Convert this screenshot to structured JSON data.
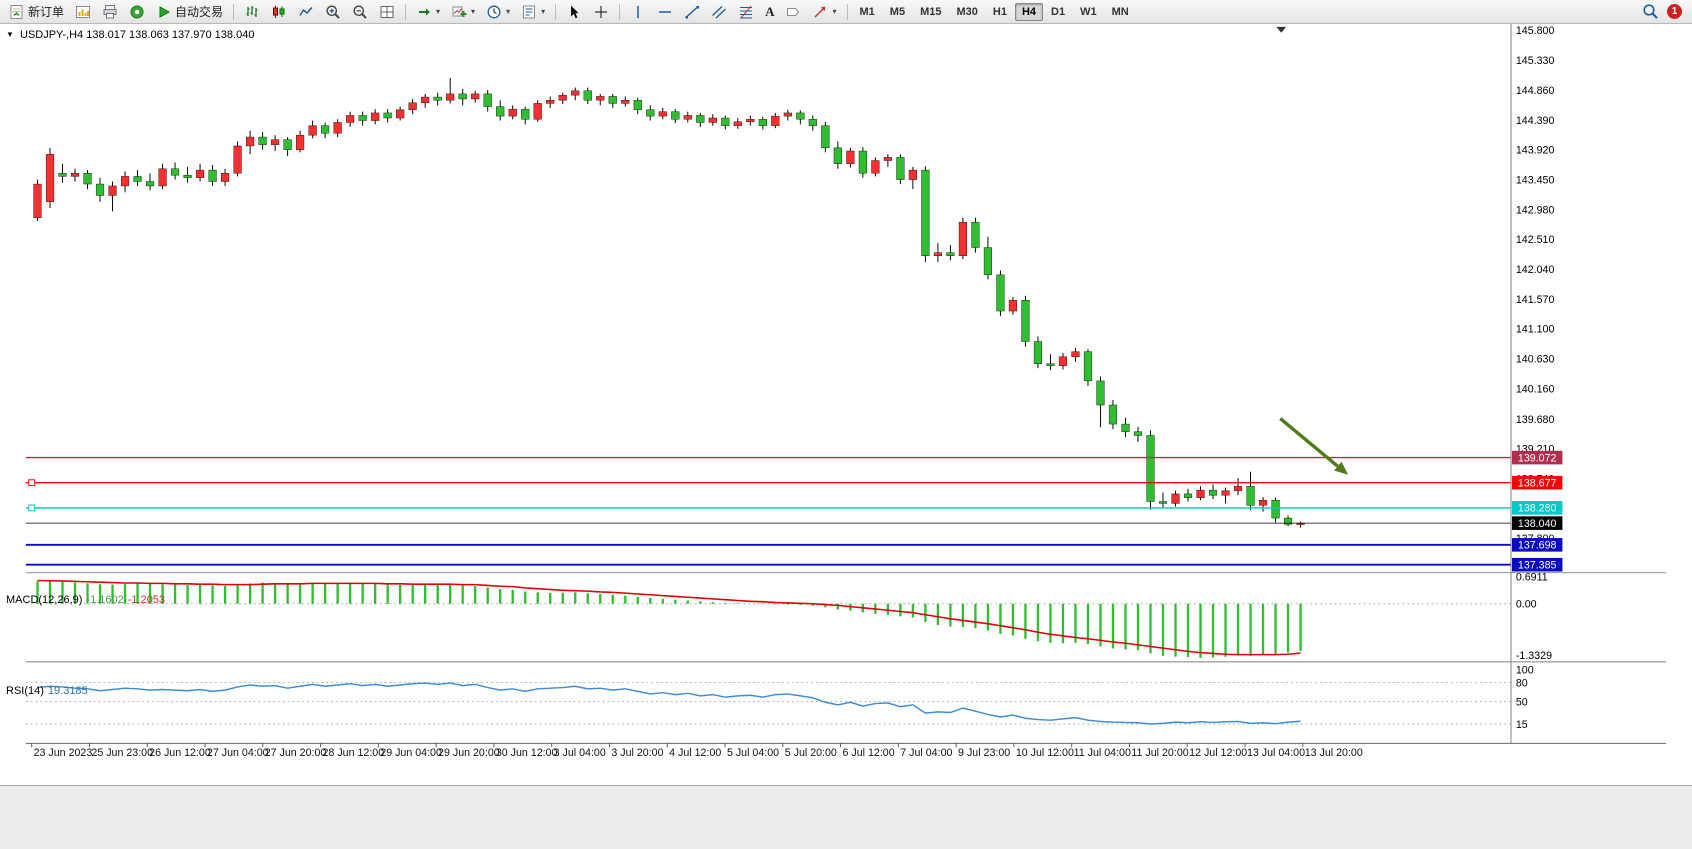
{
  "toolbar": {
    "new_order_label": "新订单",
    "auto_trading_label": "自动交易",
    "caret": "▾",
    "text_tool_glyph": "A",
    "timeframes": [
      "M1",
      "M5",
      "M15",
      "M30",
      "H1",
      "H4",
      "D1",
      "W1",
      "MN"
    ],
    "active_timeframe": "H4",
    "notification_badge": "1"
  },
  "chart": {
    "title": "USDJPY-,H4 138.017 138.063 137.970 138.040",
    "one_click_glyph": "▼",
    "current_price_label": "138.040"
  },
  "macd": {
    "name": "MACD(12,26,9)",
    "main_value": "-1.1602",
    "signal_value": "-1.2053",
    "scale": [
      "0.6911",
      "0.00",
      "-1.3329"
    ]
  },
  "rsi": {
    "name": "RSI(14)",
    "value": "19.3185",
    "scale": [
      "100",
      "80",
      "50",
      "15"
    ],
    "levels": [
      80,
      50,
      15
    ]
  },
  "price_lines": [
    {
      "price": 139.072,
      "label": "139.072",
      "color": "#b02e4e",
      "width": 1.4,
      "handle": false
    },
    {
      "price": 138.677,
      "label": "138.677",
      "color": "#f40606",
      "width": 1.4,
      "handle": true
    },
    {
      "price": 138.28,
      "label": "138.280",
      "color": "#00c8c8",
      "width": 1.4,
      "handle": true
    },
    {
      "price": 138.04,
      "label": "138.040",
      "color": "#000000",
      "width": 0.9,
      "handle": false
    },
    {
      "price": 137.698,
      "label": "137.698",
      "color": "#0a0ac0",
      "width": 2,
      "handle": false
    },
    {
      "price": 137.385,
      "label": "137.385",
      "color": "#0a0ac0",
      "width": 2,
      "handle": false
    }
  ],
  "axis": {
    "price_ticks": [
      "145.800",
      "145.330",
      "144.860",
      "144.390",
      "143.920",
      "143.450",
      "142.980",
      "142.510",
      "142.040",
      "141.570",
      "141.100",
      "140.630",
      "140.160",
      "139.680",
      "139.210",
      "138.740",
      "138.270",
      "137.800"
    ],
    "dates": [
      "23 Jun 2023",
      "25 Jun 23:00",
      "26 Jun 12:00",
      "27 Jun 04:00",
      "27 Jun 20:00",
      "28 Jun 12:00",
      "29 Jun 04:00",
      "29 Jun 20:00",
      "30 Jun 12:00",
      "3 Jul 04:00",
      "3 Jul 20:00",
      "4 Jul 12:00",
      "5 Jul 04:00",
      "5 Jul 20:00",
      "6 Jul 12:00",
      "7 Jul 04:00",
      "9 Jul 23:00",
      "10 Jul 12:00",
      "11 Jul 04:00",
      "11 Jul 20:00",
      "12 Jul 12:00",
      "13 Jul 04:00",
      "13 Jul 20:00"
    ]
  },
  "annotation": {
    "arrow_color": "#4e7d1a"
  },
  "colors": {
    "bull": "#f83030",
    "bear": "#2fbe2f",
    "wick": "#000000",
    "macd_hist": "#2fbe2f",
    "macd_signal": "#e00000",
    "rsi_line": "#3f8cd6",
    "bg": "#ffffff"
  },
  "chart_data": {
    "type": "candlestick",
    "symbol": "USDJPY-",
    "timeframe": "H4",
    "ohlc_current": {
      "open": 138.017,
      "high": 138.063,
      "low": 137.97,
      "close": 138.04
    },
    "y_range": [
      137.33,
      145.87
    ],
    "macd_range": [
      -1.3329,
      0.6911
    ],
    "rsi_range": [
      0,
      100
    ],
    "candles": [
      [
        142.85,
        143.45,
        142.8,
        143.38
      ],
      [
        143.1,
        143.95,
        143.0,
        143.85
      ],
      [
        143.55,
        143.7,
        143.4,
        143.5
      ],
      [
        143.5,
        143.62,
        143.42,
        143.55
      ],
      [
        143.55,
        143.6,
        143.3,
        143.38
      ],
      [
        143.38,
        143.48,
        143.1,
        143.2
      ],
      [
        143.2,
        143.42,
        142.95,
        143.35
      ],
      [
        143.35,
        143.58,
        143.25,
        143.5
      ],
      [
        143.5,
        143.6,
        143.35,
        143.42
      ],
      [
        143.42,
        143.55,
        143.28,
        143.35
      ],
      [
        143.35,
        143.7,
        143.3,
        143.62
      ],
      [
        143.62,
        143.72,
        143.45,
        143.52
      ],
      [
        143.52,
        143.65,
        143.4,
        143.48
      ],
      [
        143.48,
        143.7,
        143.42,
        143.6
      ],
      [
        143.6,
        143.68,
        143.35,
        143.42
      ],
      [
        143.42,
        143.62,
        143.35,
        143.55
      ],
      [
        143.55,
        144.05,
        143.5,
        143.98
      ],
      [
        143.98,
        144.22,
        143.85,
        144.12
      ],
      [
        144.12,
        144.2,
        143.92,
        144.0
      ],
      [
        144.0,
        144.15,
        143.9,
        144.08
      ],
      [
        144.08,
        144.12,
        143.82,
        143.92
      ],
      [
        143.92,
        144.22,
        143.88,
        144.15
      ],
      [
        144.15,
        144.38,
        144.1,
        144.3
      ],
      [
        144.3,
        144.35,
        144.1,
        144.18
      ],
      [
        144.18,
        144.4,
        144.12,
        144.35
      ],
      [
        144.35,
        144.52,
        144.28,
        144.46
      ],
      [
        144.46,
        144.52,
        144.3,
        144.38
      ],
      [
        144.38,
        144.56,
        144.32,
        144.5
      ],
      [
        144.5,
        144.56,
        144.35,
        144.42
      ],
      [
        144.42,
        144.6,
        144.38,
        144.55
      ],
      [
        144.55,
        144.72,
        144.48,
        144.66
      ],
      [
        144.66,
        144.8,
        144.58,
        144.75
      ],
      [
        144.75,
        144.82,
        144.62,
        144.7
      ],
      [
        144.7,
        145.05,
        144.65,
        144.8
      ],
      [
        144.8,
        144.88,
        144.62,
        144.72
      ],
      [
        144.72,
        144.85,
        144.66,
        144.8
      ],
      [
        144.8,
        144.86,
        144.52,
        144.6
      ],
      [
        144.6,
        144.7,
        144.38,
        144.45
      ],
      [
        144.45,
        144.62,
        144.4,
        144.56
      ],
      [
        144.56,
        144.6,
        144.32,
        144.4
      ],
      [
        144.4,
        144.7,
        144.36,
        144.65
      ],
      [
        144.65,
        144.76,
        144.58,
        144.7
      ],
      [
        144.7,
        144.82,
        144.64,
        144.78
      ],
      [
        144.78,
        144.9,
        144.7,
        144.85
      ],
      [
        144.85,
        144.9,
        144.64,
        144.7
      ],
      [
        144.7,
        144.8,
        144.62,
        144.76
      ],
      [
        144.76,
        144.8,
        144.58,
        144.65
      ],
      [
        144.65,
        144.76,
        144.6,
        144.7
      ],
      [
        144.7,
        144.74,
        144.48,
        144.55
      ],
      [
        144.55,
        144.62,
        144.38,
        144.45
      ],
      [
        144.45,
        144.58,
        144.4,
        144.52
      ],
      [
        144.52,
        144.56,
        144.34,
        144.4
      ],
      [
        144.4,
        144.52,
        144.35,
        144.46
      ],
      [
        144.46,
        144.5,
        144.28,
        144.35
      ],
      [
        144.35,
        144.48,
        144.3,
        144.42
      ],
      [
        144.42,
        144.46,
        144.24,
        144.3
      ],
      [
        144.3,
        144.42,
        144.25,
        144.36
      ],
      [
        144.36,
        144.46,
        144.3,
        144.4
      ],
      [
        144.4,
        144.44,
        144.24,
        144.3
      ],
      [
        144.3,
        144.5,
        144.26,
        144.45
      ],
      [
        144.45,
        144.55,
        144.38,
        144.5
      ],
      [
        144.5,
        144.54,
        144.32,
        144.4
      ],
      [
        144.4,
        144.46,
        144.22,
        144.3
      ],
      [
        144.3,
        144.36,
        143.88,
        143.95
      ],
      [
        143.95,
        144.05,
        143.62,
        143.7
      ],
      [
        143.7,
        143.95,
        143.64,
        143.9
      ],
      [
        143.9,
        143.96,
        143.48,
        143.55
      ],
      [
        143.55,
        143.8,
        143.5,
        143.75
      ],
      [
        143.75,
        143.85,
        143.65,
        143.8
      ],
      [
        143.8,
        143.85,
        143.38,
        143.45
      ],
      [
        143.45,
        143.65,
        143.3,
        143.6
      ],
      [
        143.6,
        143.66,
        142.15,
        142.25
      ],
      [
        142.25,
        142.45,
        142.15,
        142.3
      ],
      [
        142.3,
        142.42,
        142.18,
        142.25
      ],
      [
        142.25,
        142.85,
        142.2,
        142.78
      ],
      [
        142.78,
        142.85,
        142.3,
        142.38
      ],
      [
        142.38,
        142.55,
        141.88,
        141.95
      ],
      [
        141.95,
        142.02,
        141.3,
        141.38
      ],
      [
        141.38,
        141.6,
        141.32,
        141.55
      ],
      [
        141.55,
        141.62,
        140.82,
        140.9
      ],
      [
        140.9,
        140.98,
        140.48,
        140.55
      ],
      [
        140.55,
        140.7,
        140.45,
        140.52
      ],
      [
        140.52,
        140.72,
        140.46,
        140.66
      ],
      [
        140.66,
        140.8,
        140.58,
        140.74
      ],
      [
        140.74,
        140.78,
        140.2,
        140.28
      ],
      [
        140.28,
        140.35,
        139.55,
        139.9
      ],
      [
        139.9,
        139.98,
        139.52,
        139.6
      ],
      [
        139.6,
        139.7,
        139.4,
        139.48
      ],
      [
        139.48,
        139.56,
        139.32,
        139.42
      ],
      [
        139.42,
        139.5,
        138.25,
        138.38
      ],
      [
        138.38,
        138.52,
        138.28,
        138.35
      ],
      [
        138.35,
        138.55,
        138.3,
        138.5
      ],
      [
        138.5,
        138.58,
        138.38,
        138.44
      ],
      [
        138.44,
        138.62,
        138.4,
        138.56
      ],
      [
        138.56,
        138.65,
        138.42,
        138.48
      ],
      [
        138.48,
        138.6,
        138.35,
        138.55
      ],
      [
        138.55,
        138.75,
        138.48,
        138.62
      ],
      [
        138.62,
        138.85,
        138.25,
        138.32
      ],
      [
        138.32,
        138.45,
        138.22,
        138.4
      ],
      [
        138.4,
        138.44,
        138.05,
        138.12
      ],
      [
        138.12,
        138.16,
        137.99,
        138.02
      ],
      [
        138.017,
        138.063,
        137.97,
        138.04
      ]
    ],
    "macd_hist": [
      0.55,
      0.56,
      0.54,
      0.52,
      0.5,
      0.48,
      0.47,
      0.48,
      0.5,
      0.49,
      0.48,
      0.47,
      0.46,
      0.47,
      0.45,
      0.44,
      0.46,
      0.5,
      0.52,
      0.51,
      0.49,
      0.5,
      0.52,
      0.5,
      0.51,
      0.52,
      0.5,
      0.49,
      0.47,
      0.46,
      0.47,
      0.48,
      0.48,
      0.47,
      0.45,
      0.43,
      0.4,
      0.36,
      0.34,
      0.3,
      0.28,
      0.27,
      0.27,
      0.28,
      0.26,
      0.24,
      0.22,
      0.2,
      0.17,
      0.14,
      0.12,
      0.1,
      0.08,
      0.06,
      0.04,
      0.02,
      0.01,
      0.0,
      -0.01,
      -0.02,
      -0.02,
      -0.03,
      -0.05,
      -0.09,
      -0.14,
      -0.17,
      -0.21,
      -0.25,
      -0.27,
      -0.31,
      -0.34,
      -0.45,
      -0.52,
      -0.56,
      -0.57,
      -0.6,
      -0.66,
      -0.74,
      -0.78,
      -0.86,
      -0.92,
      -0.96,
      -0.97,
      -0.96,
      -0.99,
      -1.05,
      -1.1,
      -1.12,
      -1.14,
      -1.22,
      -1.28,
      -1.3,
      -1.31,
      -1.33,
      -1.32,
      -1.3,
      -1.27,
      -1.28,
      -1.26,
      -1.24,
      -1.2,
      -1.16
    ],
    "macd_signal": [
      0.57,
      0.565,
      0.56,
      0.55,
      0.54,
      0.53,
      0.52,
      0.51,
      0.51,
      0.5,
      0.5,
      0.49,
      0.49,
      0.48,
      0.48,
      0.47,
      0.47,
      0.47,
      0.48,
      0.49,
      0.49,
      0.49,
      0.5,
      0.5,
      0.5,
      0.5,
      0.5,
      0.5,
      0.49,
      0.49,
      0.48,
      0.48,
      0.48,
      0.48,
      0.47,
      0.47,
      0.45,
      0.43,
      0.42,
      0.39,
      0.37,
      0.35,
      0.33,
      0.32,
      0.31,
      0.29,
      0.28,
      0.26,
      0.24,
      0.22,
      0.2,
      0.18,
      0.16,
      0.14,
      0.12,
      0.1,
      0.08,
      0.06,
      0.05,
      0.03,
      0.02,
      0.01,
      0.0,
      -0.02,
      -0.04,
      -0.07,
      -0.1,
      -0.13,
      -0.16,
      -0.19,
      -0.22,
      -0.27,
      -0.32,
      -0.37,
      -0.41,
      -0.45,
      -0.49,
      -0.54,
      -0.59,
      -0.64,
      -0.7,
      -0.75,
      -0.79,
      -0.83,
      -0.86,
      -0.9,
      -0.94,
      -0.97,
      -1.01,
      -1.05,
      -1.09,
      -1.13,
      -1.17,
      -1.2,
      -1.22,
      -1.24,
      -1.25,
      -1.25,
      -1.25,
      -1.25,
      -1.24,
      -1.21
    ],
    "rsi": [
      72,
      74,
      73,
      71,
      70,
      67,
      69,
      71,
      70,
      68,
      69,
      68,
      67,
      69,
      66,
      68,
      73,
      76,
      74,
      75,
      71,
      74,
      77,
      74,
      76,
      78,
      75,
      77,
      74,
      76,
      78,
      79,
      77,
      79,
      75,
      77,
      72,
      68,
      70,
      66,
      70,
      71,
      72,
      74,
      70,
      71,
      68,
      70,
      66,
      62,
      64,
      61,
      63,
      59,
      61,
      57,
      59,
      60,
      57,
      61,
      62,
      59,
      56,
      49,
      45,
      49,
      43,
      47,
      48,
      42,
      45,
      32,
      34,
      33,
      40,
      35,
      30,
      26,
      29,
      24,
      22,
      21,
      23,
      25,
      21,
      19,
      18,
      17.5,
      17,
      15,
      16,
      18,
      17,
      18.5,
      17.5,
      18.5,
      19,
      16,
      17,
      15.5,
      18,
      19.3
    ]
  }
}
